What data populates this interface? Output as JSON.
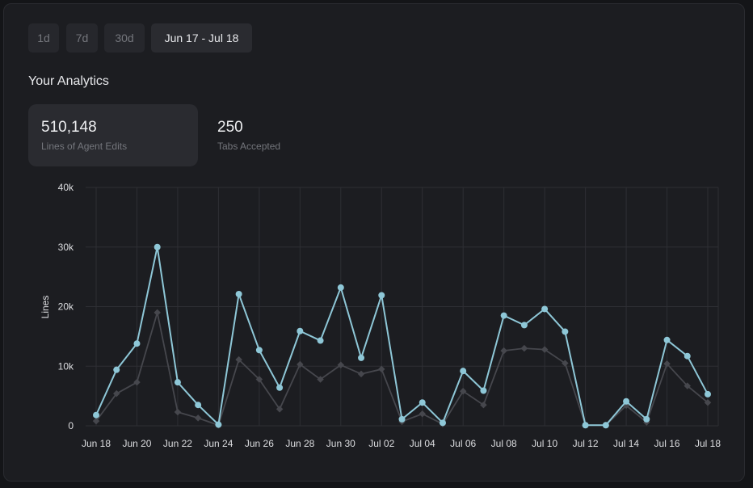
{
  "ranges": [
    {
      "label": "1d",
      "active": false
    },
    {
      "label": "7d",
      "active": false
    },
    {
      "label": "30d",
      "active": false
    },
    {
      "label": "Jun 17 - Jul 18",
      "active": true
    }
  ],
  "title": "Your Analytics",
  "stats": [
    {
      "value": "510,148",
      "label": "Lines of Agent Edits",
      "active": true
    },
    {
      "value": "250",
      "label": "Tabs Accepted",
      "active": false
    }
  ],
  "colors": {
    "primary": "#8ec7d7",
    "secondary": "#46474d",
    "grid": "#2e2f34"
  },
  "chart_data": {
    "type": "line",
    "ylabel": "Lines",
    "ylim": [
      0,
      40000
    ],
    "yticks": [
      {
        "value": 0,
        "label": "0"
      },
      {
        "value": 10000,
        "label": "10k"
      },
      {
        "value": 20000,
        "label": "20k"
      },
      {
        "value": 30000,
        "label": "30k"
      },
      {
        "value": 40000,
        "label": "40k"
      }
    ],
    "categories": [
      "Jun 18",
      "Jun 19",
      "Jun 20",
      "Jun 21",
      "Jun 22",
      "Jun 23",
      "Jun 24",
      "Jun 25",
      "Jun 26",
      "Jun 27",
      "Jun 28",
      "Jun 29",
      "Jun 30",
      "Jul 01",
      "Jul 02",
      "Jul 03",
      "Jul 04",
      "Jul 05",
      "Jul 06",
      "Jul 07",
      "Jul 08",
      "Jul 09",
      "Jul 10",
      "Jul 11",
      "Jul 12",
      "Jul 13",
      "Jul 14",
      "Jul 15",
      "Jul 16",
      "Jul 17",
      "Jul 18"
    ],
    "xtick_labels": [
      "Jun 18",
      "Jun 20",
      "Jun 22",
      "Jun 24",
      "Jun 26",
      "Jun 28",
      "Jun 30",
      "Jul 02",
      "Jul 04",
      "Jul 06",
      "Jul 08",
      "Jul 10",
      "Jul 12",
      "Jul 14",
      "Jul 16",
      "Jul 18"
    ],
    "series": [
      {
        "values": [
          1800,
          9400,
          13800,
          30000,
          7300,
          3500,
          200,
          22100,
          12700,
          6400,
          15900,
          14300,
          23200,
          11400,
          21900,
          1100,
          3900,
          500,
          9200,
          5900,
          18500,
          16900,
          19600,
          15800,
          100,
          100,
          4100,
          1100,
          14400,
          11700,
          5300
        ]
      },
      {
        "values": [
          800,
          5400,
          7300,
          19000,
          2300,
          1300,
          100,
          11100,
          7800,
          2800,
          10300,
          7800,
          10200,
          8700,
          9500,
          700,
          2000,
          300,
          5800,
          3500,
          12600,
          13000,
          12800,
          10500,
          100,
          100,
          3400,
          600,
          10400,
          6700,
          3900
        ]
      }
    ]
  }
}
